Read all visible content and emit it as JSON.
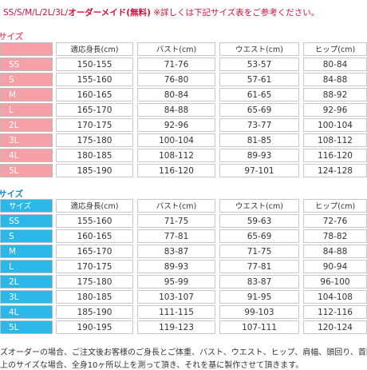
{
  "notice": {
    "sizes": "SS/S/M/L/2L/3L/",
    "custom": "オーダーメイド(無料)",
    "note": "※詳しくは下記サイズ表をご参考ください。"
  },
  "tables": [
    {
      "heading": "サイズ",
      "header": [
        "適応身長(cm)",
        "バスト(cm)",
        "ウエスト(cm)",
        "ヒップ(cm)"
      ],
      "rows": [
        [
          "SS",
          "150-155",
          "71-76",
          "53-57",
          "80-84"
        ],
        [
          "S",
          "155-160",
          "76-80",
          "57-61",
          "84-88"
        ],
        [
          "M",
          "160-165",
          "80-84",
          "61-65",
          "88-92"
        ],
        [
          "L",
          "165-170",
          "84-88",
          "65-69",
          "92-96"
        ],
        [
          "2L",
          "170-175",
          "92-96",
          "73-77",
          "100-104"
        ],
        [
          "3L",
          "175-180",
          "100-104",
          "81-85",
          "108-112"
        ],
        [
          "4L",
          "180-185",
          "108-112",
          "89-93",
          "116-120"
        ],
        [
          "5L",
          "185-190",
          "116-120",
          "97-101",
          "124-128"
        ]
      ]
    },
    {
      "heading": "サイズ",
      "corner": "サイズ",
      "header": [
        "適応身長(cm)",
        "バスト(cm)",
        "ウエスト(cm)",
        "ヒップ(cm)"
      ],
      "rows": [
        [
          "SS",
          "155-160",
          "71-75",
          "59-63",
          "72-76"
        ],
        [
          "S",
          "160-165",
          "77-81",
          "65-69",
          "78-82"
        ],
        [
          "M",
          "165-170",
          "83-87",
          "71-75",
          "84-88"
        ],
        [
          "L",
          "170-175",
          "89-93",
          "77-81",
          "90-94"
        ],
        [
          "2L",
          "175-180",
          "95-99",
          "83-87",
          "96-100"
        ],
        [
          "3L",
          "180-185",
          "103-107",
          "91-95",
          "104-108"
        ],
        [
          "4L",
          "185-190",
          "111-115",
          "99-103",
          "112-116"
        ],
        [
          "5L",
          "190-195",
          "119-123",
          "107-111",
          "120-124"
        ]
      ]
    }
  ],
  "footer": [
    "ズオーダーの場合、ご注文後お客様のご身長とご体重、バスト、ウエスト、ヒップ、肩幅、頭回り、首回",
    "上のサイズな場合、全身10ヶ所以上を測って頂き、それを基に製作させて頂きます。"
  ]
}
